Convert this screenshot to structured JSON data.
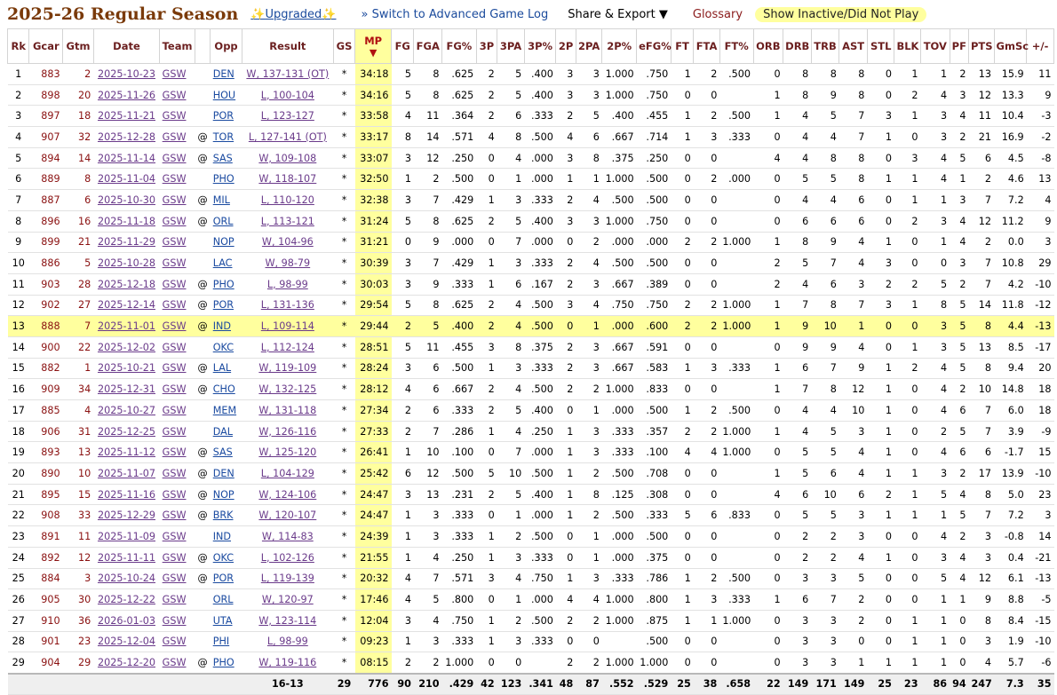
{
  "header": {
    "title": "2025-26 Regular Season",
    "upgraded_label": "Upgraded",
    "switch_label": "» Switch to Advanced Game Log",
    "share_label": "Share & Export ▼",
    "glossary_label": "Glossary",
    "inactive_label": "Show Inactive/Did Not Play"
  },
  "columns": [
    "Rk",
    "Gcar",
    "Gtm",
    "Date",
    "Team",
    "",
    "Opp",
    "Result",
    "GS",
    "MP",
    "FG",
    "FGA",
    "FG%",
    "3P",
    "3PA",
    "3P%",
    "2P",
    "2PA",
    "2P%",
    "eFG%",
    "FT",
    "FTA",
    "FT%",
    "ORB",
    "DRB",
    "TRB",
    "AST",
    "STL",
    "BLK",
    "TOV",
    "PF",
    "PTS",
    "GmSc",
    "+/-"
  ],
  "sort_indicator": "▼",
  "highlight_row": 13,
  "rows": [
    [
      "1",
      "883",
      "2",
      "2025-10-23",
      "GSW",
      "",
      "DEN",
      "W, 137-131 (OT)",
      "*",
      "34:18",
      "5",
      "8",
      ".625",
      "2",
      "5",
      ".400",
      "3",
      "3",
      "1.000",
      ".750",
      "1",
      "2",
      ".500",
      "0",
      "8",
      "8",
      "8",
      "0",
      "1",
      "1",
      "2",
      "13",
      "15.9",
      "11"
    ],
    [
      "2",
      "898",
      "20",
      "2025-11-26",
      "GSW",
      "",
      "HOU",
      "L, 100-104",
      "*",
      "34:16",
      "5",
      "8",
      ".625",
      "2",
      "5",
      ".400",
      "3",
      "3",
      "1.000",
      ".750",
      "0",
      "0",
      "",
      "1",
      "8",
      "9",
      "8",
      "0",
      "2",
      "4",
      "3",
      "12",
      "13.3",
      "9"
    ],
    [
      "3",
      "897",
      "18",
      "2025-11-21",
      "GSW",
      "",
      "POR",
      "L, 123-127",
      "*",
      "33:58",
      "4",
      "11",
      ".364",
      "2",
      "6",
      ".333",
      "2",
      "5",
      ".400",
      ".455",
      "1",
      "2",
      ".500",
      "1",
      "4",
      "5",
      "7",
      "3",
      "1",
      "3",
      "4",
      "11",
      "10.4",
      "-3"
    ],
    [
      "4",
      "907",
      "32",
      "2025-12-28",
      "GSW",
      "@",
      "TOR",
      "L, 127-141 (OT)",
      "*",
      "33:17",
      "8",
      "14",
      ".571",
      "4",
      "8",
      ".500",
      "4",
      "6",
      ".667",
      ".714",
      "1",
      "3",
      ".333",
      "0",
      "4",
      "4",
      "7",
      "1",
      "0",
      "3",
      "2",
      "21",
      "16.9",
      "-2"
    ],
    [
      "5",
      "894",
      "14",
      "2025-11-14",
      "GSW",
      "@",
      "SAS",
      "W, 109-108",
      "*",
      "33:07",
      "3",
      "12",
      ".250",
      "0",
      "4",
      ".000",
      "3",
      "8",
      ".375",
      ".250",
      "0",
      "0",
      "",
      "4",
      "4",
      "8",
      "8",
      "0",
      "3",
      "4",
      "5",
      "6",
      "4.5",
      "-8"
    ],
    [
      "6",
      "889",
      "8",
      "2025-11-04",
      "GSW",
      "",
      "PHO",
      "W, 118-107",
      "*",
      "32:50",
      "1",
      "2",
      ".500",
      "0",
      "1",
      ".000",
      "1",
      "1",
      "1.000",
      ".500",
      "0",
      "2",
      ".000",
      "0",
      "5",
      "5",
      "8",
      "1",
      "1",
      "4",
      "1",
      "2",
      "4.6",
      "13"
    ],
    [
      "7",
      "887",
      "6",
      "2025-10-30",
      "GSW",
      "@",
      "MIL",
      "L, 110-120",
      "*",
      "32:38",
      "3",
      "7",
      ".429",
      "1",
      "3",
      ".333",
      "2",
      "4",
      ".500",
      ".500",
      "0",
      "0",
      "",
      "0",
      "4",
      "4",
      "6",
      "0",
      "1",
      "1",
      "3",
      "7",
      "7.2",
      "4"
    ],
    [
      "8",
      "896",
      "16",
      "2025-11-18",
      "GSW",
      "@",
      "ORL",
      "L, 113-121",
      "*",
      "31:24",
      "5",
      "8",
      ".625",
      "2",
      "5",
      ".400",
      "3",
      "3",
      "1.000",
      ".750",
      "0",
      "0",
      "",
      "0",
      "6",
      "6",
      "6",
      "0",
      "2",
      "3",
      "4",
      "12",
      "11.2",
      "9"
    ],
    [
      "9",
      "899",
      "21",
      "2025-11-29",
      "GSW",
      "",
      "NOP",
      "W, 104-96",
      "*",
      "31:21",
      "0",
      "9",
      ".000",
      "0",
      "7",
      ".000",
      "0",
      "2",
      ".000",
      ".000",
      "2",
      "2",
      "1.000",
      "1",
      "8",
      "9",
      "4",
      "1",
      "0",
      "1",
      "4",
      "2",
      "0.0",
      "3"
    ],
    [
      "10",
      "886",
      "5",
      "2025-10-28",
      "GSW",
      "",
      "LAC",
      "W, 98-79",
      "*",
      "30:39",
      "3",
      "7",
      ".429",
      "1",
      "3",
      ".333",
      "2",
      "4",
      ".500",
      ".500",
      "0",
      "0",
      "",
      "2",
      "5",
      "7",
      "4",
      "3",
      "0",
      "0",
      "3",
      "7",
      "10.8",
      "29"
    ],
    [
      "11",
      "903",
      "28",
      "2025-12-18",
      "GSW",
      "@",
      "PHO",
      "L, 98-99",
      "*",
      "30:03",
      "3",
      "9",
      ".333",
      "1",
      "6",
      ".167",
      "2",
      "3",
      ".667",
      ".389",
      "0",
      "0",
      "",
      "2",
      "4",
      "6",
      "3",
      "2",
      "2",
      "5",
      "2",
      "7",
      "4.2",
      "-10"
    ],
    [
      "12",
      "902",
      "27",
      "2025-12-14",
      "GSW",
      "@",
      "POR",
      "L, 131-136",
      "*",
      "29:54",
      "5",
      "8",
      ".625",
      "2",
      "4",
      ".500",
      "3",
      "4",
      ".750",
      ".750",
      "2",
      "2",
      "1.000",
      "1",
      "7",
      "8",
      "7",
      "3",
      "1",
      "8",
      "5",
      "14",
      "11.8",
      "-12"
    ],
    [
      "13",
      "888",
      "7",
      "2025-11-01",
      "GSW",
      "@",
      "IND",
      "L, 109-114",
      "*",
      "29:44",
      "2",
      "5",
      ".400",
      "2",
      "4",
      ".500",
      "0",
      "1",
      ".000",
      ".600",
      "2",
      "2",
      "1.000",
      "1",
      "9",
      "10",
      "1",
      "0",
      "0",
      "3",
      "5",
      "8",
      "4.4",
      "-13"
    ],
    [
      "14",
      "900",
      "22",
      "2025-12-02",
      "GSW",
      "",
      "OKC",
      "L, 112-124",
      "*",
      "28:51",
      "5",
      "11",
      ".455",
      "3",
      "8",
      ".375",
      "2",
      "3",
      ".667",
      ".591",
      "0",
      "0",
      "",
      "0",
      "9",
      "9",
      "4",
      "0",
      "1",
      "3",
      "5",
      "13",
      "8.5",
      "-17"
    ],
    [
      "15",
      "882",
      "1",
      "2025-10-21",
      "GSW",
      "@",
      "LAL",
      "W, 119-109",
      "*",
      "28:24",
      "3",
      "6",
      ".500",
      "1",
      "3",
      ".333",
      "2",
      "3",
      ".667",
      ".583",
      "1",
      "3",
      ".333",
      "1",
      "6",
      "7",
      "9",
      "1",
      "2",
      "4",
      "5",
      "8",
      "9.4",
      "20"
    ],
    [
      "16",
      "909",
      "34",
      "2025-12-31",
      "GSW",
      "@",
      "CHO",
      "W, 132-125",
      "*",
      "28:12",
      "4",
      "6",
      ".667",
      "2",
      "4",
      ".500",
      "2",
      "2",
      "1.000",
      ".833",
      "0",
      "0",
      "",
      "1",
      "7",
      "8",
      "12",
      "1",
      "0",
      "4",
      "2",
      "10",
      "14.8",
      "18"
    ],
    [
      "17",
      "885",
      "4",
      "2025-10-27",
      "GSW",
      "",
      "MEM",
      "W, 131-118",
      "*",
      "27:34",
      "2",
      "6",
      ".333",
      "2",
      "5",
      ".400",
      "0",
      "1",
      ".000",
      ".500",
      "1",
      "2",
      ".500",
      "0",
      "4",
      "4",
      "10",
      "1",
      "0",
      "4",
      "6",
      "7",
      "6.0",
      "18"
    ],
    [
      "18",
      "906",
      "31",
      "2025-12-25",
      "GSW",
      "",
      "DAL",
      "W, 126-116",
      "*",
      "27:33",
      "2",
      "7",
      ".286",
      "1",
      "4",
      ".250",
      "1",
      "3",
      ".333",
      ".357",
      "2",
      "2",
      "1.000",
      "1",
      "4",
      "5",
      "3",
      "1",
      "0",
      "2",
      "5",
      "7",
      "3.9",
      "-9"
    ],
    [
      "19",
      "893",
      "13",
      "2025-11-12",
      "GSW",
      "@",
      "SAS",
      "W, 125-120",
      "*",
      "26:41",
      "1",
      "10",
      ".100",
      "0",
      "7",
      ".000",
      "1",
      "3",
      ".333",
      ".100",
      "4",
      "4",
      "1.000",
      "0",
      "5",
      "5",
      "4",
      "1",
      "0",
      "4",
      "6",
      "6",
      "-1.7",
      "15"
    ],
    [
      "20",
      "890",
      "10",
      "2025-11-07",
      "GSW",
      "@",
      "DEN",
      "L, 104-129",
      "*",
      "25:42",
      "6",
      "12",
      ".500",
      "5",
      "10",
      ".500",
      "1",
      "2",
      ".500",
      ".708",
      "0",
      "0",
      "",
      "1",
      "5",
      "6",
      "4",
      "1",
      "1",
      "3",
      "2",
      "17",
      "13.9",
      "-10"
    ],
    [
      "21",
      "895",
      "15",
      "2025-11-16",
      "GSW",
      "@",
      "NOP",
      "W, 124-106",
      "*",
      "24:47",
      "3",
      "13",
      ".231",
      "2",
      "5",
      ".400",
      "1",
      "8",
      ".125",
      ".308",
      "0",
      "0",
      "",
      "4",
      "6",
      "10",
      "6",
      "2",
      "1",
      "5",
      "4",
      "8",
      "5.0",
      "23"
    ],
    [
      "22",
      "908",
      "33",
      "2025-12-29",
      "GSW",
      "@",
      "BRK",
      "W, 120-107",
      "*",
      "24:47",
      "1",
      "3",
      ".333",
      "0",
      "1",
      ".000",
      "1",
      "2",
      ".500",
      ".333",
      "5",
      "6",
      ".833",
      "0",
      "5",
      "5",
      "3",
      "1",
      "1",
      "1",
      "5",
      "7",
      "7.2",
      "3"
    ],
    [
      "23",
      "891",
      "11",
      "2025-11-09",
      "GSW",
      "",
      "IND",
      "W, 114-83",
      "*",
      "24:39",
      "1",
      "3",
      ".333",
      "1",
      "2",
      ".500",
      "0",
      "1",
      ".000",
      ".500",
      "0",
      "0",
      "",
      "0",
      "2",
      "2",
      "3",
      "0",
      "0",
      "4",
      "2",
      "3",
      "-0.8",
      "14"
    ],
    [
      "24",
      "892",
      "12",
      "2025-11-11",
      "GSW",
      "@",
      "OKC",
      "L, 102-126",
      "*",
      "21:55",
      "1",
      "4",
      ".250",
      "1",
      "3",
      ".333",
      "0",
      "1",
      ".000",
      ".375",
      "0",
      "0",
      "",
      "0",
      "2",
      "2",
      "4",
      "1",
      "0",
      "3",
      "4",
      "3",
      "0.4",
      "-21"
    ],
    [
      "25",
      "884",
      "3",
      "2025-10-24",
      "GSW",
      "@",
      "POR",
      "L, 119-139",
      "*",
      "20:32",
      "4",
      "7",
      ".571",
      "3",
      "4",
      ".750",
      "1",
      "3",
      ".333",
      ".786",
      "1",
      "2",
      ".500",
      "0",
      "3",
      "3",
      "5",
      "0",
      "0",
      "5",
      "4",
      "12",
      "6.1",
      "-13"
    ],
    [
      "26",
      "905",
      "30",
      "2025-12-22",
      "GSW",
      "",
      "ORL",
      "W, 120-97",
      "*",
      "17:46",
      "4",
      "5",
      ".800",
      "0",
      "1",
      ".000",
      "4",
      "4",
      "1.000",
      ".800",
      "1",
      "3",
      ".333",
      "1",
      "6",
      "7",
      "2",
      "0",
      "0",
      "1",
      "1",
      "9",
      "8.8",
      "-5"
    ],
    [
      "27",
      "910",
      "36",
      "2026-01-03",
      "GSW",
      "",
      "UTA",
      "W, 123-114",
      "*",
      "12:04",
      "3",
      "4",
      ".750",
      "1",
      "2",
      ".500",
      "2",
      "2",
      "1.000",
      ".875",
      "1",
      "1",
      "1.000",
      "0",
      "3",
      "3",
      "2",
      "0",
      "1",
      "1",
      "0",
      "8",
      "8.4",
      "-15"
    ],
    [
      "28",
      "901",
      "23",
      "2025-12-04",
      "GSW",
      "",
      "PHI",
      "L, 98-99",
      "*",
      "09:23",
      "1",
      "3",
      ".333",
      "1",
      "3",
      ".333",
      "0",
      "0",
      "",
      ".500",
      "0",
      "0",
      "",
      "0",
      "3",
      "3",
      "0",
      "0",
      "1",
      "1",
      "0",
      "3",
      "1.9",
      "-10"
    ],
    [
      "29",
      "904",
      "29",
      "2025-12-20",
      "GSW",
      "@",
      "PHO",
      "W, 119-116",
      "*",
      "08:15",
      "2",
      "2",
      "1.000",
      "0",
      "0",
      "",
      "2",
      "2",
      "1.000",
      "1.000",
      "0",
      "0",
      "",
      "0",
      "3",
      "3",
      "1",
      "1",
      "1",
      "1",
      "0",
      "4",
      "5.7",
      "-6"
    ]
  ],
  "totals": [
    "",
    "",
    "",
    "",
    "",
    "",
    "",
    "16-13",
    "29",
    "776",
    "90",
    "210",
    ".429",
    "42",
    "123",
    ".341",
    "48",
    "87",
    ".552",
    ".529",
    "25",
    "38",
    ".658",
    "22",
    "149",
    "171",
    "149",
    "25",
    "23",
    "86",
    "94",
    "247",
    "7.3",
    "35"
  ],
  "colors": {
    "title": "#7a3a0a",
    "highlight": "#ffff9e",
    "header_text": "#6b1f1f",
    "link": "#6a3a8a",
    "opp_link": "#1a4aa0"
  }
}
